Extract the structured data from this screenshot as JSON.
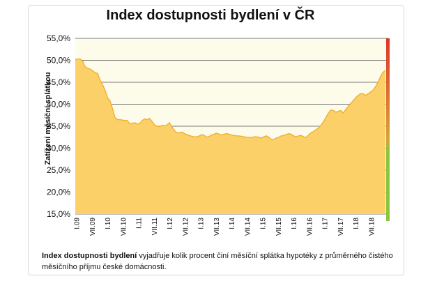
{
  "title": "Index dostupnosti bydlení  v ČR",
  "caption": {
    "bold": "Index dostupnosti bydlení",
    "rest": " vyjadřuje kolik procent činí  měsíční splátka hypotéky z průměrného čistého měsíčního příjmu české domácnosti."
  },
  "colors": {
    "fill": "#fbd069",
    "line": "#f0ac28",
    "plot_bg": "#fdfbea",
    "grid": "#555555",
    "indicator_top": "#e0342c",
    "indicator_bottom": "#8cc63f"
  },
  "chart_data": {
    "type": "area",
    "title": "Index dostupnosti bydlení  v ČR",
    "xlabel": "",
    "ylabel": "Zatížení měsíční splátkou",
    "ylim": [
      15,
      55
    ],
    "yticks": [
      "15,0%",
      "20,0%",
      "25,0%",
      "30,0%",
      "35,0%",
      "40,0%",
      "45,0%",
      "50,0%",
      "55,0%"
    ],
    "xtick_labels": [
      "I.09",
      "VII.09",
      "I.10",
      "VII.10",
      "I.11",
      "VII.11",
      "I.12",
      "VII.12",
      "I.13",
      "VII.13",
      "I.14",
      "VII.14",
      "I.15",
      "VII.15",
      "I.16",
      "VII.16",
      "I.17",
      "VII.17",
      "I.18",
      "VII.18"
    ],
    "grid": true,
    "series": [
      {
        "values": [
          50.2,
          50.3,
          50.3,
          49.8,
          48.5,
          48.2,
          48.0,
          47.6,
          47.2,
          47.0,
          45.5,
          44.5,
          43.2,
          41.5,
          40.8,
          39.0,
          37.0,
          36.5,
          36.5,
          36.4,
          36.3,
          36.3,
          35.5,
          35.7,
          35.8,
          35.5,
          35.6,
          36.3,
          36.7,
          36.5,
          36.8,
          36.0,
          35.3,
          35.0,
          34.9,
          35.2,
          35.1,
          35.3,
          35.8,
          34.8,
          34.0,
          33.5,
          33.5,
          33.7,
          33.3,
          33.1,
          32.9,
          32.7,
          32.6,
          32.6,
          32.8,
          33.1,
          32.9,
          32.5,
          32.7,
          33.0,
          33.2,
          33.4,
          33.2,
          33.0,
          33.2,
          33.3,
          33.2,
          33.0,
          32.9,
          32.8,
          32.8,
          32.7,
          32.6,
          32.5,
          32.5,
          32.4,
          32.6,
          32.6,
          32.5,
          32.3,
          32.6,
          32.8,
          32.5,
          32.0,
          32.0,
          32.3,
          32.5,
          32.8,
          32.9,
          33.1,
          33.3,
          33.2,
          32.8,
          32.6,
          32.8,
          32.9,
          32.6,
          32.4,
          33.0,
          33.5,
          33.8,
          34.2,
          34.6,
          35.2,
          36.0,
          37.0,
          38.0,
          38.7,
          38.6,
          38.2,
          38.4,
          38.6,
          38.0,
          38.8,
          39.5,
          40.2,
          40.8,
          41.5,
          42.0,
          42.4,
          42.4,
          42.0,
          42.4,
          42.8,
          43.2,
          44.0,
          45.0,
          46.3,
          47.3,
          47.7
        ]
      }
    ],
    "indicator_bar": "red-to-green gradient"
  }
}
